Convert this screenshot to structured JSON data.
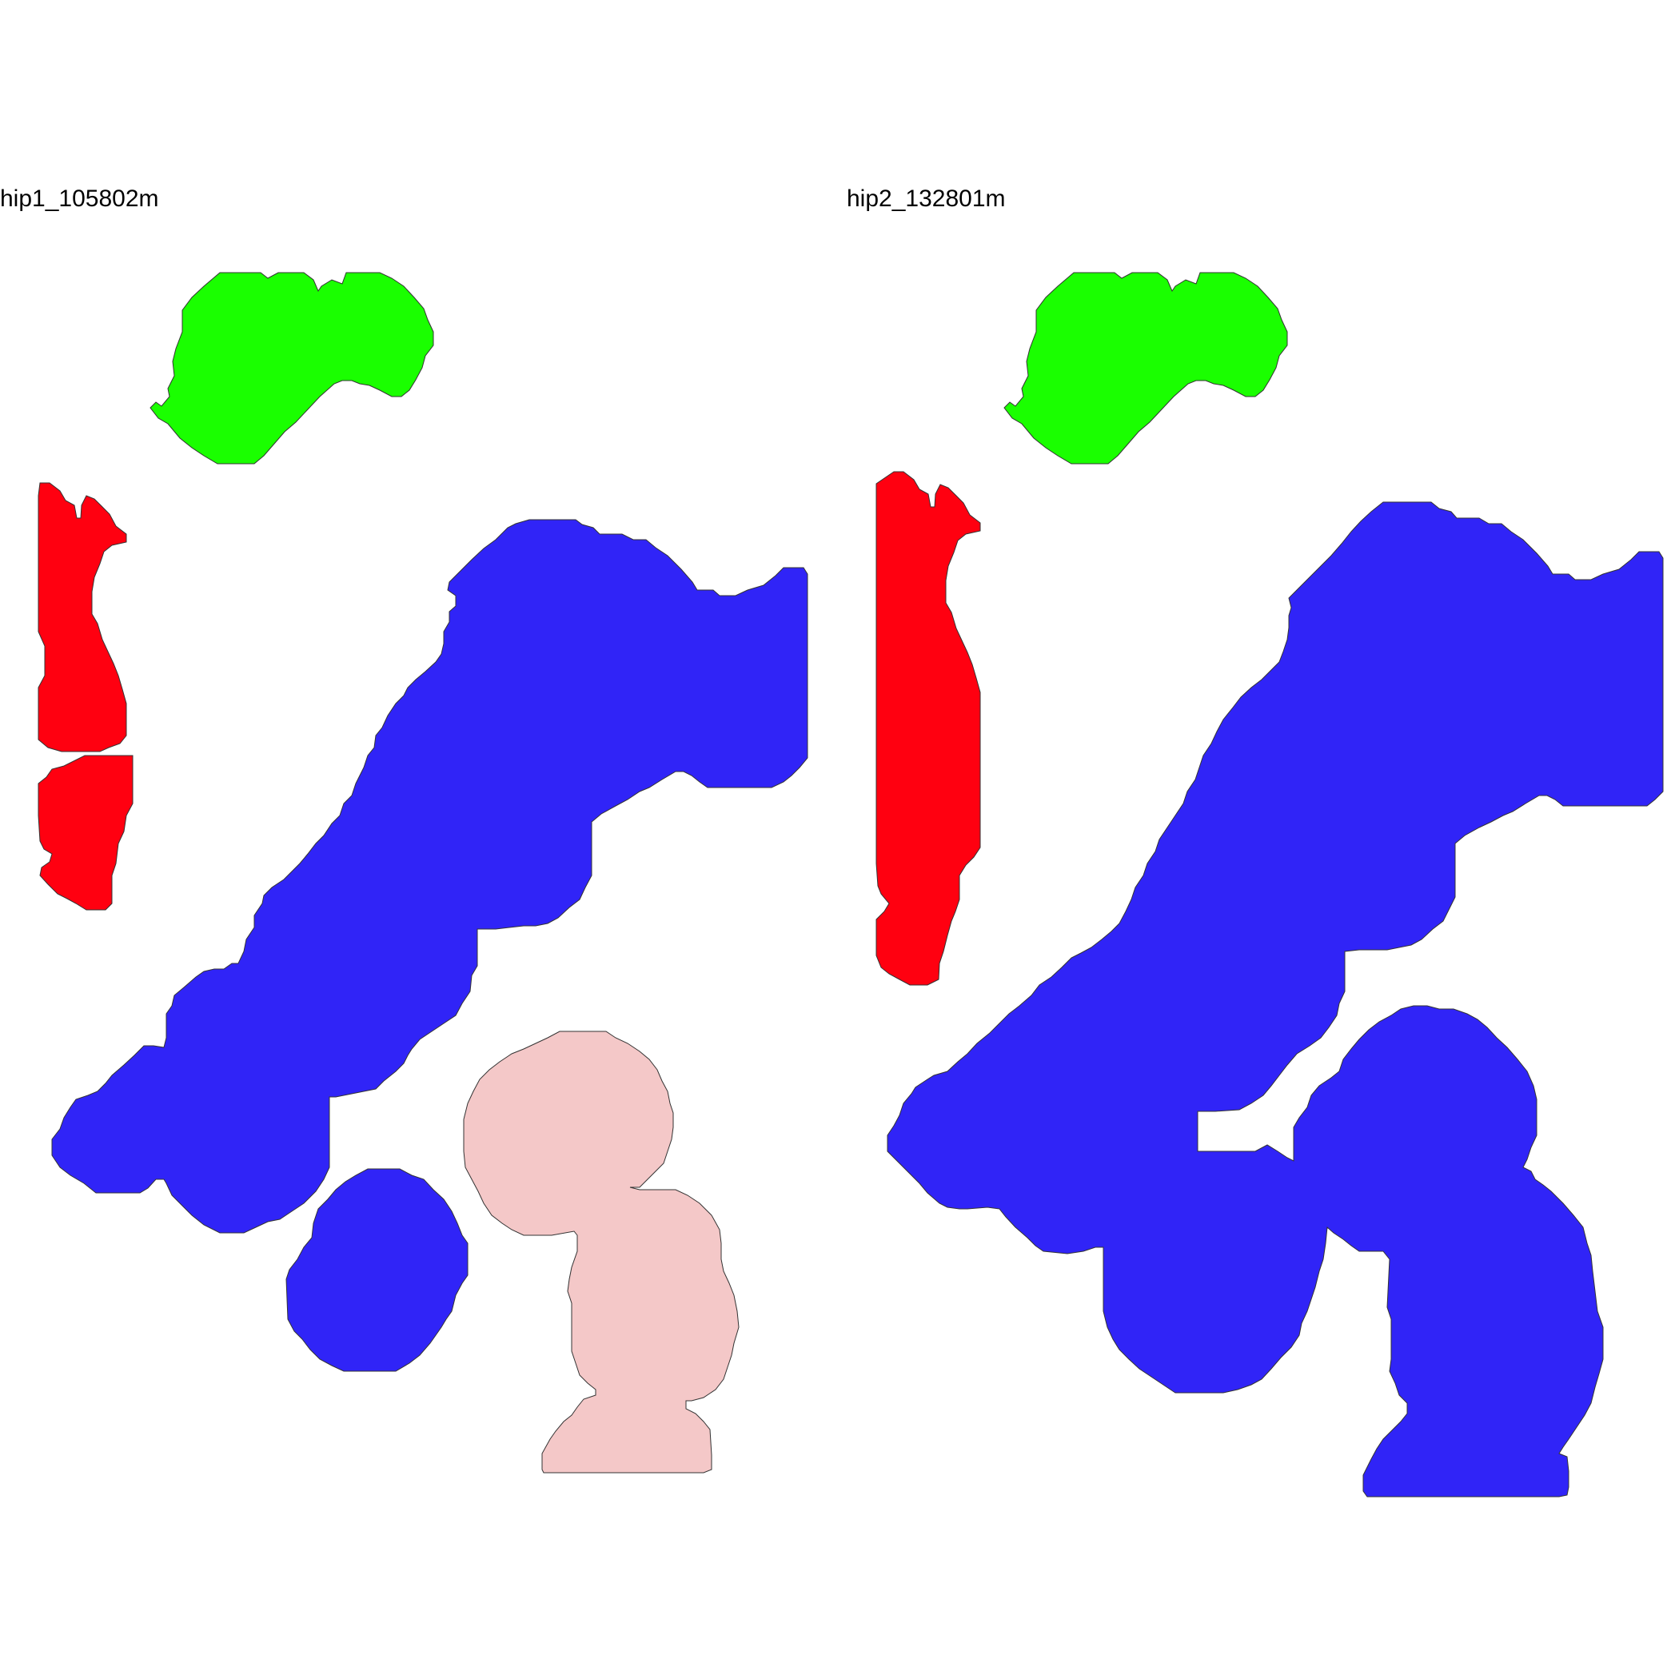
{
  "panels": [
    {
      "title": "hip1_105802m",
      "regions": [
        {
          "id": "green-region",
          "color": "#1aff00"
        },
        {
          "id": "red-region-upper",
          "color": "#ff0010"
        },
        {
          "id": "red-region-lower",
          "color": "#ff0010"
        },
        {
          "id": "blue-region-main",
          "color": "#3024f7"
        },
        {
          "id": "blue-region-small",
          "color": "#3024f7"
        },
        {
          "id": "pink-region",
          "color": "#f4c8c8"
        }
      ]
    },
    {
      "title": "hip2_132801m",
      "regions": [
        {
          "id": "green-region",
          "color": "#1aff00"
        },
        {
          "id": "red-region",
          "color": "#ff0010"
        },
        {
          "id": "blue-region",
          "color": "#3024f7"
        }
      ]
    }
  ]
}
